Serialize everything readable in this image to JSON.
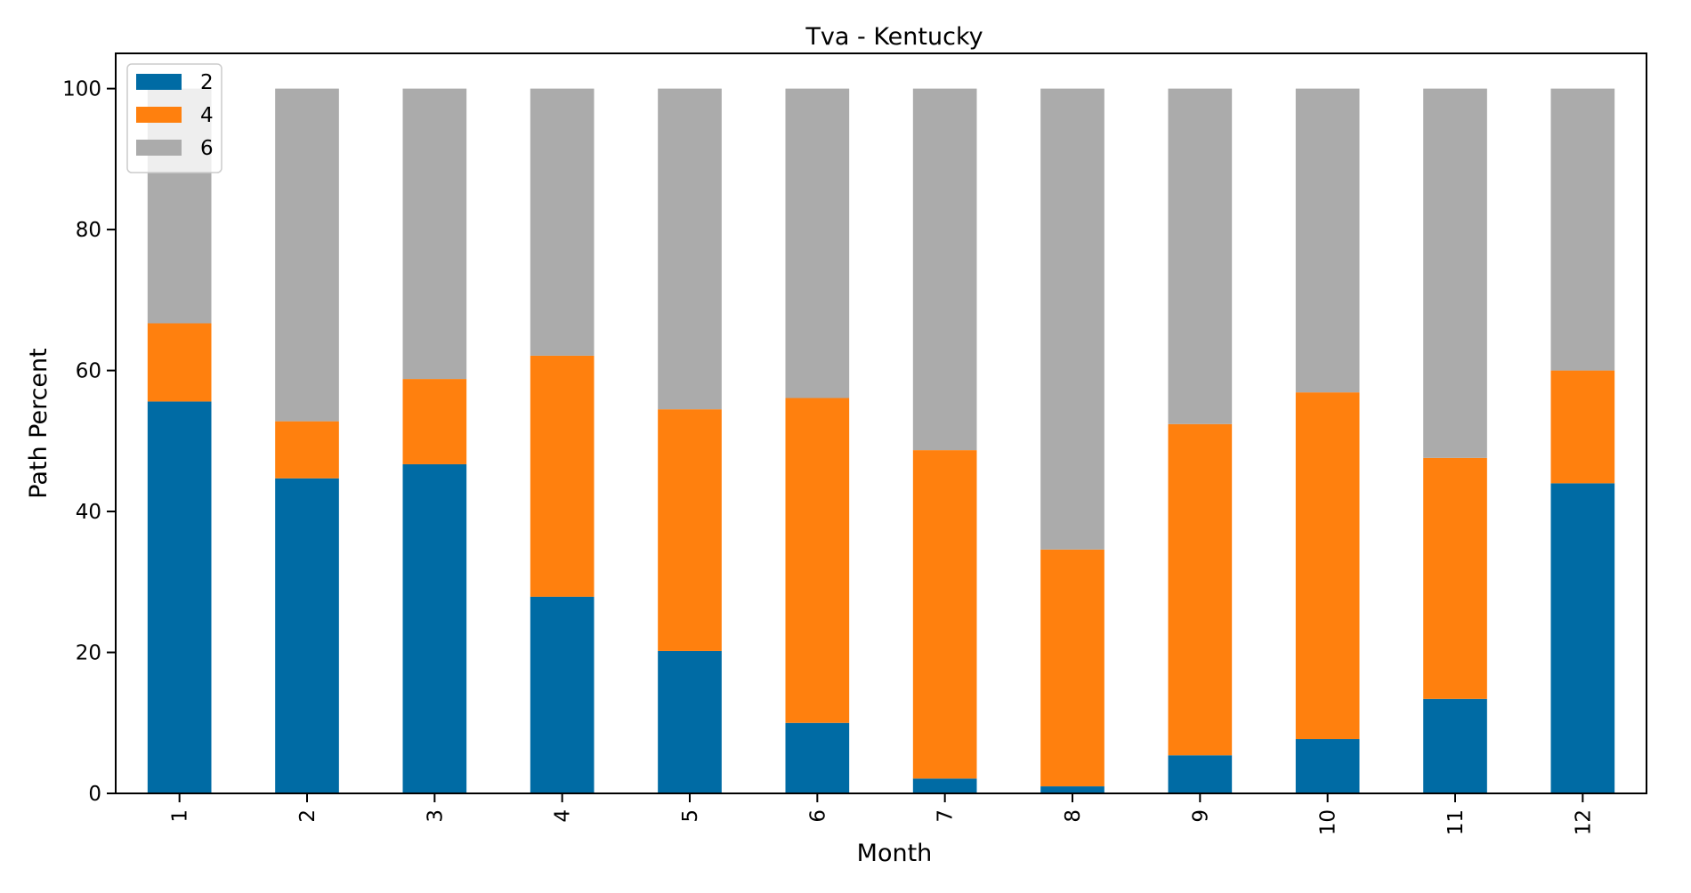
{
  "chart_data": {
    "type": "bar",
    "stacked": true,
    "title": "Tva - Kentucky",
    "xlabel": "Month",
    "ylabel": "Path Percent",
    "categories": [
      "1",
      "2",
      "3",
      "4",
      "5",
      "6",
      "7",
      "8",
      "9",
      "10",
      "11",
      "12"
    ],
    "ylim": [
      0,
      105
    ],
    "yticks": [
      0,
      20,
      40,
      60,
      80,
      100
    ],
    "grid": false,
    "legend_position": "top-left",
    "series": [
      {
        "name": "2",
        "color": "#006BA4",
        "values": [
          55.6,
          44.7,
          46.7,
          27.9,
          20.2,
          10.0,
          2.1,
          1.0,
          5.4,
          7.7,
          13.4,
          44.0
        ]
      },
      {
        "name": "4",
        "color": "#FF800E",
        "values": [
          11.1,
          8.1,
          12.1,
          34.2,
          34.3,
          46.1,
          46.6,
          33.6,
          47.0,
          49.2,
          34.2,
          16.0
        ]
      },
      {
        "name": "6",
        "color": "#ABABAB",
        "values": [
          33.3,
          47.2,
          41.2,
          37.9,
          45.5,
          43.9,
          51.3,
          65.4,
          47.6,
          43.1,
          52.4,
          40.0
        ]
      }
    ]
  }
}
